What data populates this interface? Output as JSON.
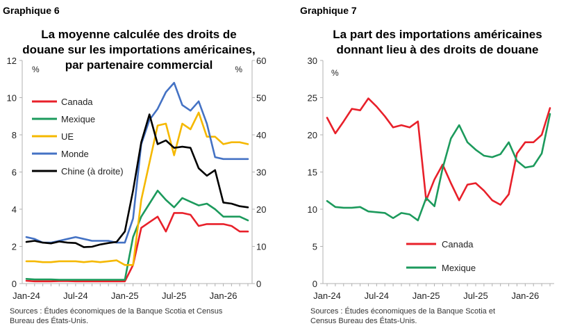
{
  "chart_data": [
    {
      "panel_label": "Graphique 6",
      "title": "La moyenne calculée des droits de douane sur les importations américaines, par partenaire commercial",
      "title_lines": [
        "La moyenne calculée des droits de",
        "douane sur les importations américaines,",
        "par partenaire commercial"
      ],
      "type": "line",
      "x": [
        "Jan-24",
        "Feb-24",
        "Mar-24",
        "Apr-24",
        "May-24",
        "Jun-24",
        "Jul-24",
        "Aug-24",
        "Sep-24",
        "Oct-24",
        "Nov-24",
        "Dec-24",
        "Jan-25",
        "Feb-25",
        "Mar-25",
        "Apr-25",
        "May-25",
        "Jun-25",
        "Jul-25",
        "Aug-25",
        "Sep-25",
        "Oct-25",
        "Nov-25",
        "Dec-25",
        "Jan-26",
        "Feb-26",
        "Mar-26",
        "Apr-26"
      ],
      "xticks": [
        "Jan-24",
        "Jul-24",
        "Jan-25",
        "Jul-25",
        "Jan-26"
      ],
      "ylabel_left": "%",
      "ylabel_right": "%",
      "ylim_left": [
        0,
        12
      ],
      "ylim_right": [
        0,
        60
      ],
      "yticks_left": [
        "0",
        "2",
        "4",
        "6",
        "8",
        "10",
        "12"
      ],
      "yticks_right": [
        "0",
        "10",
        "20",
        "30",
        "40",
        "50",
        "60"
      ],
      "series": [
        {
          "name": "Canada",
          "color": "#e8202a",
          "axis": "left",
          "values": [
            0.15,
            0.12,
            0.12,
            0.12,
            0.13,
            0.13,
            0.12,
            0.12,
            0.12,
            0.12,
            0.12,
            0.12,
            0.12,
            1.0,
            3.0,
            3.3,
            3.6,
            2.8,
            3.8,
            3.8,
            3.7,
            3.1,
            3.2,
            3.2,
            3.2,
            3.1,
            2.8,
            2.8
          ]
        },
        {
          "name": "Mexique",
          "color": "#1c9a5c",
          "axis": "left",
          "values": [
            0.25,
            0.22,
            0.22,
            0.22,
            0.2,
            0.2,
            0.2,
            0.2,
            0.2,
            0.2,
            0.2,
            0.2,
            0.2,
            2.5,
            3.6,
            4.3,
            5.0,
            4.5,
            4.1,
            4.6,
            4.4,
            4.2,
            4.3,
            4.0,
            3.6,
            3.6,
            3.6,
            3.4
          ]
        },
        {
          "name": "UE",
          "color": "#f5b800",
          "axis": "left",
          "values": [
            1.2,
            1.2,
            1.15,
            1.15,
            1.2,
            1.2,
            1.2,
            1.15,
            1.2,
            1.15,
            1.2,
            1.25,
            1.0,
            1.0,
            4.5,
            6.5,
            8.5,
            8.6,
            6.9,
            8.6,
            8.3,
            9.2,
            7.9,
            7.9,
            7.5,
            7.6,
            7.6,
            7.5
          ]
        },
        {
          "name": "Monde",
          "color": "#4472c4",
          "axis": "left",
          "values": [
            2.5,
            2.4,
            2.2,
            2.2,
            2.3,
            2.4,
            2.5,
            2.4,
            2.3,
            2.3,
            2.3,
            2.2,
            2.2,
            3.5,
            7.5,
            8.8,
            9.4,
            10.3,
            10.8,
            9.6,
            9.3,
            9.8,
            8.6,
            6.8,
            6.7,
            6.7,
            6.7,
            6.7
          ]
        },
        {
          "name": "Chine (à droite)",
          "color": "#000000",
          "axis": "right",
          "values": [
            11.2,
            11.5,
            11.0,
            10.8,
            11.3,
            11.0,
            10.9,
            9.8,
            9.9,
            10.5,
            10.9,
            11.2,
            14.0,
            25.0,
            38.0,
            45.5,
            37.5,
            38.5,
            36.5,
            36.8,
            36.5,
            31.0,
            29.0,
            30.5,
            21.8,
            21.5,
            20.8,
            20.5
          ]
        }
      ],
      "legend_position": "top-left",
      "source": "Sources : Études économiques de la Banque Scotia et Census Bureau des États-Unis.",
      "source_lines": [
        "Sources : Études économiques de la Banque Scotia et Census",
        "Bureau des États-Unis."
      ]
    },
    {
      "panel_label": "Graphique 7",
      "title": "La part des importations américaines donnant lieu à des droits de douane",
      "title_lines": [
        "La part des importations américaines",
        "donnant lieu à des droits de douane"
      ],
      "type": "line",
      "x": [
        "Jan-24",
        "Feb-24",
        "Mar-24",
        "Apr-24",
        "May-24",
        "Jun-24",
        "Jul-24",
        "Aug-24",
        "Sep-24",
        "Oct-24",
        "Nov-24",
        "Dec-24",
        "Jan-25",
        "Feb-25",
        "Mar-25",
        "Apr-25",
        "May-25",
        "Jun-25",
        "Jul-25",
        "Aug-25",
        "Sep-25",
        "Oct-25",
        "Nov-25",
        "Dec-25",
        "Jan-26",
        "Feb-26",
        "Mar-26",
        "Apr-26"
      ],
      "xticks": [
        "Jan-24",
        "Jul-24",
        "Jan-25",
        "Jul-25",
        "Jan-26"
      ],
      "ylabel": "%",
      "ylim": [
        0,
        30
      ],
      "yticks": [
        "0",
        "5",
        "10",
        "15",
        "20",
        "25",
        "30"
      ],
      "series": [
        {
          "name": "Canada",
          "color": "#e8202a",
          "values": [
            22.3,
            20.2,
            21.8,
            23.5,
            23.3,
            24.9,
            23.8,
            22.5,
            21.0,
            21.3,
            21.0,
            21.8,
            11.2,
            14.0,
            16.0,
            13.5,
            11.2,
            13.3,
            13.5,
            12.5,
            11.2,
            10.6,
            12.0,
            17.5,
            19.0,
            19.0,
            20.0,
            23.6
          ]
        },
        {
          "name": "Mexique",
          "color": "#1c9a5c",
          "values": [
            11.1,
            10.3,
            10.2,
            10.2,
            10.3,
            9.7,
            9.6,
            9.5,
            8.8,
            9.5,
            9.3,
            8.5,
            11.5,
            10.4,
            15.5,
            19.5,
            21.3,
            19.0,
            18.0,
            17.2,
            17.0,
            17.4,
            19.0,
            16.5,
            15.6,
            15.8,
            17.5,
            22.8
          ]
        }
      ],
      "legend_position": "bottom-center",
      "source": "Sources : Études économiques de la Banque Scotia et Census Bureau des États-Unis.",
      "source_lines": [
        "Sources : Études économiques de la Banque Scotia et",
        "Census Bureau des États-Unis."
      ]
    }
  ]
}
